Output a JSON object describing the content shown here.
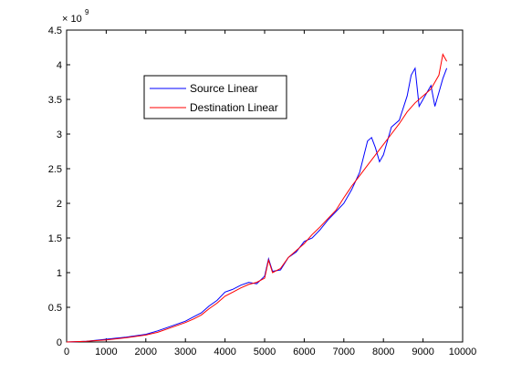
{
  "chart_data": {
    "type": "line",
    "title": "",
    "xlabel": "",
    "ylabel": "",
    "xlim": [
      0,
      10000
    ],
    "ylim": [
      0,
      4.5
    ],
    "y_exponent_label": "× 10",
    "y_exponent_power": "9",
    "x_ticks": [
      0,
      1000,
      2000,
      3000,
      4000,
      5000,
      6000,
      7000,
      8000,
      9000,
      10000
    ],
    "y_ticks": [
      0,
      0.5,
      1,
      1.5,
      2,
      2.5,
      3,
      3.5,
      4,
      4.5
    ],
    "x_tick_labels": [
      "0",
      "1000",
      "2000",
      "3000",
      "4000",
      "5000",
      "6000",
      "7000",
      "8000",
      "9000",
      "10000"
    ],
    "y_tick_labels": [
      "0",
      "0.5",
      "1",
      "1.5",
      "2",
      "2.5",
      "3",
      "3.5",
      "4",
      "4.5"
    ],
    "grid": false,
    "legend_position": "top-left",
    "series": [
      {
        "name": "Source Linear",
        "color": "#0000ff",
        "points": [
          [
            0,
            0
          ],
          [
            500,
            0.01
          ],
          [
            1000,
            0.04
          ],
          [
            1500,
            0.07
          ],
          [
            2000,
            0.11
          ],
          [
            2300,
            0.16
          ],
          [
            2600,
            0.22
          ],
          [
            3000,
            0.3
          ],
          [
            3200,
            0.36
          ],
          [
            3400,
            0.42
          ],
          [
            3600,
            0.52
          ],
          [
            3800,
            0.6
          ],
          [
            4000,
            0.72
          ],
          [
            4200,
            0.76
          ],
          [
            4400,
            0.82
          ],
          [
            4600,
            0.86
          ],
          [
            4800,
            0.84
          ],
          [
            5000,
            0.95
          ],
          [
            5100,
            1.2
          ],
          [
            5200,
            1.02
          ],
          [
            5400,
            1.04
          ],
          [
            5600,
            1.22
          ],
          [
            5800,
            1.3
          ],
          [
            6000,
            1.45
          ],
          [
            6200,
            1.5
          ],
          [
            6400,
            1.62
          ],
          [
            6600,
            1.76
          ],
          [
            6800,
            1.88
          ],
          [
            7000,
            2.0
          ],
          [
            7200,
            2.2
          ],
          [
            7400,
            2.45
          ],
          [
            7600,
            2.9
          ],
          [
            7700,
            2.95
          ],
          [
            7800,
            2.8
          ],
          [
            7900,
            2.6
          ],
          [
            8000,
            2.7
          ],
          [
            8200,
            3.1
          ],
          [
            8400,
            3.2
          ],
          [
            8600,
            3.55
          ],
          [
            8700,
            3.85
          ],
          [
            8800,
            3.95
          ],
          [
            8900,
            3.4
          ],
          [
            9000,
            3.5
          ],
          [
            9200,
            3.7
          ],
          [
            9300,
            3.4
          ],
          [
            9400,
            3.6
          ],
          [
            9500,
            3.8
          ],
          [
            9600,
            3.95
          ]
        ]
      },
      {
        "name": "Destination Linear",
        "color": "#ff0000",
        "points": [
          [
            0,
            0
          ],
          [
            500,
            0.01
          ],
          [
            1000,
            0.03
          ],
          [
            1500,
            0.06
          ],
          [
            2000,
            0.1
          ],
          [
            2300,
            0.14
          ],
          [
            2600,
            0.2
          ],
          [
            3000,
            0.28
          ],
          [
            3200,
            0.33
          ],
          [
            3400,
            0.39
          ],
          [
            3600,
            0.48
          ],
          [
            3800,
            0.56
          ],
          [
            4000,
            0.66
          ],
          [
            4200,
            0.72
          ],
          [
            4400,
            0.78
          ],
          [
            4600,
            0.83
          ],
          [
            4800,
            0.86
          ],
          [
            5000,
            0.92
          ],
          [
            5100,
            1.18
          ],
          [
            5200,
            1.0
          ],
          [
            5400,
            1.06
          ],
          [
            5600,
            1.22
          ],
          [
            5800,
            1.32
          ],
          [
            6000,
            1.42
          ],
          [
            6200,
            1.55
          ],
          [
            6400,
            1.66
          ],
          [
            6600,
            1.78
          ],
          [
            6800,
            1.9
          ],
          [
            7000,
            2.08
          ],
          [
            7200,
            2.25
          ],
          [
            7400,
            2.4
          ],
          [
            7600,
            2.55
          ],
          [
            7800,
            2.7
          ],
          [
            8000,
            2.85
          ],
          [
            8200,
            3.0
          ],
          [
            8400,
            3.15
          ],
          [
            8600,
            3.32
          ],
          [
            8800,
            3.45
          ],
          [
            9000,
            3.55
          ],
          [
            9200,
            3.65
          ],
          [
            9400,
            3.85
          ],
          [
            9500,
            4.15
          ],
          [
            9600,
            4.05
          ]
        ]
      }
    ]
  }
}
